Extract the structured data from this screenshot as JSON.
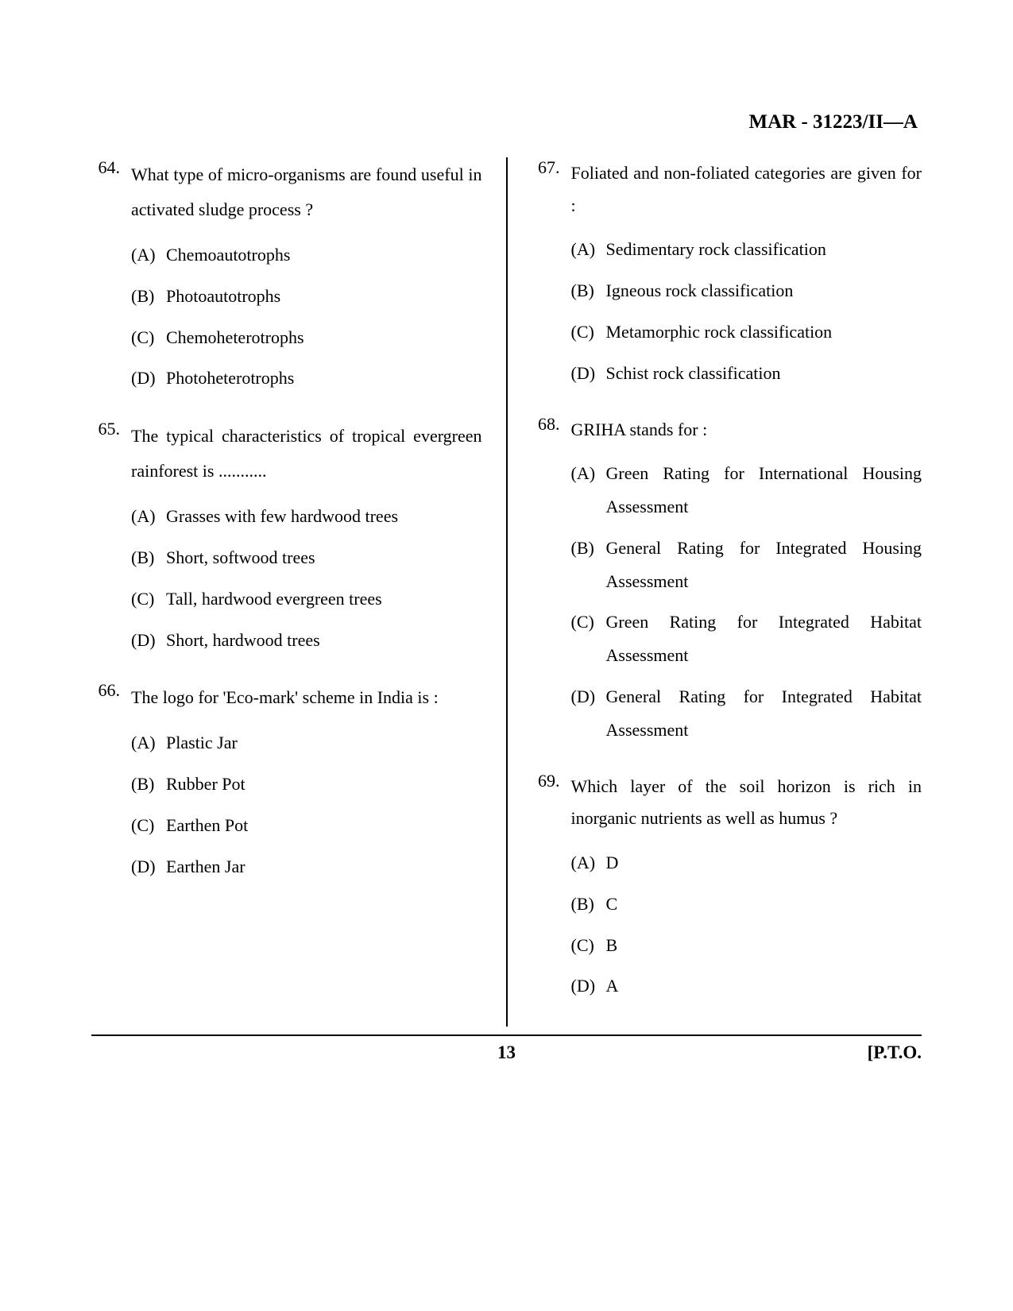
{
  "header": "MAR - 31223/II—A",
  "left": {
    "questions": [
      {
        "num": "64.",
        "text": "What type of micro-organisms are found useful in activated sludge process ?",
        "options": [
          {
            "letter": "(A)",
            "text": "Chemoautotrophs"
          },
          {
            "letter": "(B)",
            "text": "Photoautotrophs"
          },
          {
            "letter": "(C)",
            "text": "Chemoheterotrophs"
          },
          {
            "letter": "(D)",
            "text": "Photoheterotrophs"
          }
        ]
      },
      {
        "num": "65.",
        "text": "The typical characteristics of tropical evergreen rainforest is ...........",
        "options": [
          {
            "letter": "(A)",
            "text": "Grasses with few hardwood trees"
          },
          {
            "letter": "(B)",
            "text": "Short, softwood trees"
          },
          {
            "letter": "(C)",
            "text": "Tall, hardwood evergreen trees"
          },
          {
            "letter": "(D)",
            "text": "Short, hardwood trees"
          }
        ]
      },
      {
        "num": "66.",
        "text": "The logo for 'Eco-mark' scheme in India is :",
        "options": [
          {
            "letter": "(A)",
            "text": "Plastic Jar"
          },
          {
            "letter": "(B)",
            "text": "Rubber Pot"
          },
          {
            "letter": "(C)",
            "text": "Earthen Pot"
          },
          {
            "letter": "(D)",
            "text": "Earthen Jar"
          }
        ]
      }
    ]
  },
  "right": {
    "questions": [
      {
        "num": "67.",
        "text": "Foliated and non-foliated categories are given for :",
        "options": [
          {
            "letter": "(A)",
            "text": "Sedimentary rock classification"
          },
          {
            "letter": "(B)",
            "text": "Igneous rock classification"
          },
          {
            "letter": "(C)",
            "text": "Metamorphic rock classification"
          },
          {
            "letter": "(D)",
            "text": "Schist rock classification"
          }
        ]
      },
      {
        "num": "68.",
        "text": "GRIHA stands for :",
        "options": [
          {
            "letter": "(A)",
            "text": "Green Rating for International Housing Assessment"
          },
          {
            "letter": "(B)",
            "text": "General Rating for Integrated Housing Assessment"
          },
          {
            "letter": "(C)",
            "text": "Green Rating for Integrated Habitat Assessment"
          },
          {
            "letter": "(D)",
            "text": "General Rating for Integrated Habitat Assessment"
          }
        ]
      },
      {
        "num": "69.",
        "text": "Which layer of the soil horizon is rich in inorganic nutrients as well as humus ?",
        "options": [
          {
            "letter": "(A)",
            "text": "D"
          },
          {
            "letter": "(B)",
            "text": "C"
          },
          {
            "letter": "(C)",
            "text": "B"
          },
          {
            "letter": "(D)",
            "text": "A"
          }
        ]
      }
    ]
  },
  "footer": {
    "pagenum": "13",
    "pto": "[P.T.O."
  }
}
